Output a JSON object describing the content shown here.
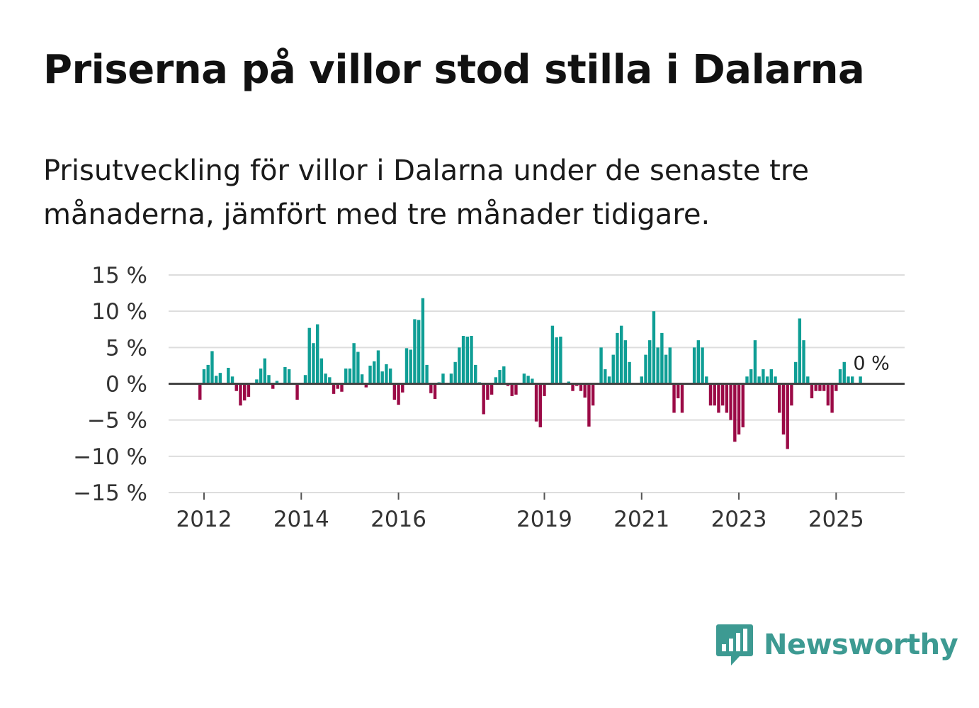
{
  "title": "Priserna på villor stod stilla i Dalarna",
  "subtitle": "Prisutveckling för villor i Dalarna under de senaste tre månaderna, jämfört med tre månader tidigare.",
  "brand": {
    "name": "Newsworthy",
    "color": "#3d9a92",
    "icon": "bar-chart-speech-bubble-icon"
  },
  "colors": {
    "positive": "#0f9e95",
    "negative": "#9b0a46",
    "grid": "#dddddd",
    "zero": "#444444"
  },
  "chart_data": {
    "type": "bar",
    "title": "Priserna på villor stod stilla i Dalarna",
    "xlabel": "",
    "ylabel": "",
    "ylim": [
      -15,
      15
    ],
    "yticks": [
      15,
      10,
      5,
      0,
      -5,
      -10,
      -15
    ],
    "ytick_labels": [
      "15 %",
      "10 %",
      "5 %",
      "0 %",
      "−5 %",
      "−10 %",
      "−15 %"
    ],
    "xticks": [
      {
        "label": "2012",
        "year": 2012
      },
      {
        "label": "2014",
        "year": 2014
      },
      {
        "label": "2016",
        "year": 2016
      },
      {
        "label": "2019",
        "year": 2019
      },
      {
        "label": "2021",
        "year": 2021
      },
      {
        "label": "2023",
        "year": 2023
      },
      {
        "label": "2025",
        "year": 2025
      }
    ],
    "start": {
      "year": 2011,
      "month": 12
    },
    "last_label": "0 %",
    "unit": "%",
    "grid": true,
    "values": [
      -2.2,
      2.0,
      2.6,
      4.5,
      1.1,
      1.5,
      0,
      2.2,
      1.0,
      -1.0,
      -3.0,
      -2.3,
      -1.8,
      0,
      0.6,
      2.1,
      3.5,
      1.2,
      -0.7,
      0.4,
      0,
      2.3,
      2.0,
      0,
      -2.2,
      0,
      1.2,
      7.7,
      5.6,
      8.2,
      3.5,
      1.4,
      0.9,
      -1.4,
      -0.7,
      -1.1,
      2.1,
      2.1,
      5.6,
      4.4,
      1.3,
      -0.5,
      2.5,
      3.1,
      4.6,
      1.7,
      2.7,
      2.1,
      -2.2,
      -2.9,
      -1.2,
      4.9,
      4.7,
      8.9,
      8.8,
      11.8,
      2.6,
      -1.3,
      -2.1,
      0.2,
      1.4,
      0,
      1.4,
      3.0,
      5.0,
      6.6,
      6.5,
      6.6,
      2.6,
      0.2,
      -4.2,
      -2.2,
      -1.5,
      0.9,
      1.9,
      2.4,
      -0.3,
      -1.7,
      -1.5,
      0,
      1.4,
      1.1,
      0.7,
      -5.2,
      -6.0,
      -1.7,
      0,
      8.0,
      6.4,
      6.5,
      0,
      0.3,
      -1.0,
      -0.3,
      -1.0,
      -1.9,
      -5.9,
      -3.0,
      0,
      5.0,
      2.0,
      1.0,
      4.0,
      7.0,
      8.0,
      6.0,
      3.0,
      0,
      0,
      1.0,
      4.0,
      6.0,
      10.0,
      5.0,
      7.0,
      4.0,
      5.0,
      -4.0,
      -2.0,
      -4.0,
      0,
      0,
      5.0,
      6.0,
      5.0,
      1.0,
      -3.0,
      -3.0,
      -4.0,
      -3.0,
      -4.0,
      -5.0,
      -8.0,
      -7.0,
      -6.0,
      1.0,
      2.0,
      6.0,
      1.0,
      2.0,
      1.0,
      2.0,
      1.0,
      -4.0,
      -7.0,
      -9.0,
      -3.0,
      3.0,
      9.0,
      6.0,
      1.0,
      -2.0,
      -1.0,
      -1.0,
      -1.0,
      -3.0,
      -4.0,
      -1.0,
      2.0,
      3.0,
      1.0,
      1.0,
      0,
      1.0,
      0
    ]
  }
}
